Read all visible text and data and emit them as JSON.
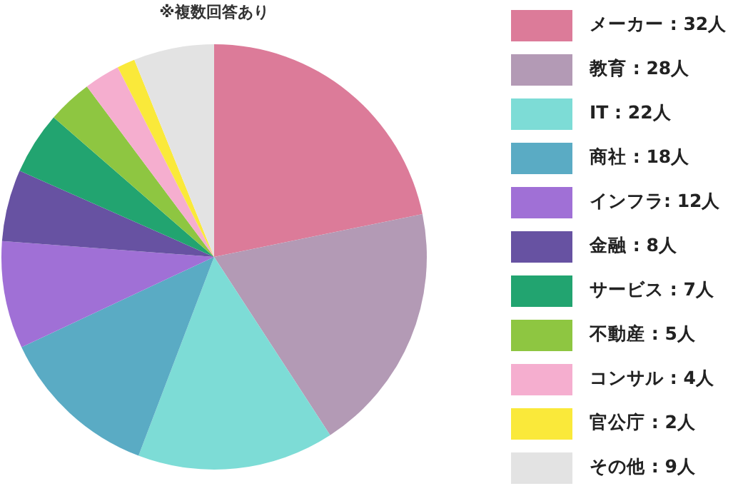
{
  "chart_data": {
    "type": "pie",
    "annotations": [
      "※複数回答あり"
    ],
    "categories": [
      "メーカー : 32人",
      "教育 : 28人",
      "IT : 22人",
      "商社 : 18人",
      "インフラ: 12人",
      "金融 : 8人",
      "サービス : 7人",
      "不動産 : 5人",
      "コンサル : 4人",
      "官公庁 : 2人",
      "その他 : 9人"
    ],
    "values": [
      32,
      28,
      22,
      18,
      12,
      8,
      7,
      5,
      4,
      2,
      9
    ],
    "colors": [
      "#dc7b99",
      "#b39ab5",
      "#7ddcd6",
      "#5aabc4",
      "#a070d6",
      "#6752a2",
      "#22a470",
      "#8ec641",
      "#f5aecf",
      "#fae93a",
      "#e3e3e3"
    ],
    "legend": "right"
  }
}
